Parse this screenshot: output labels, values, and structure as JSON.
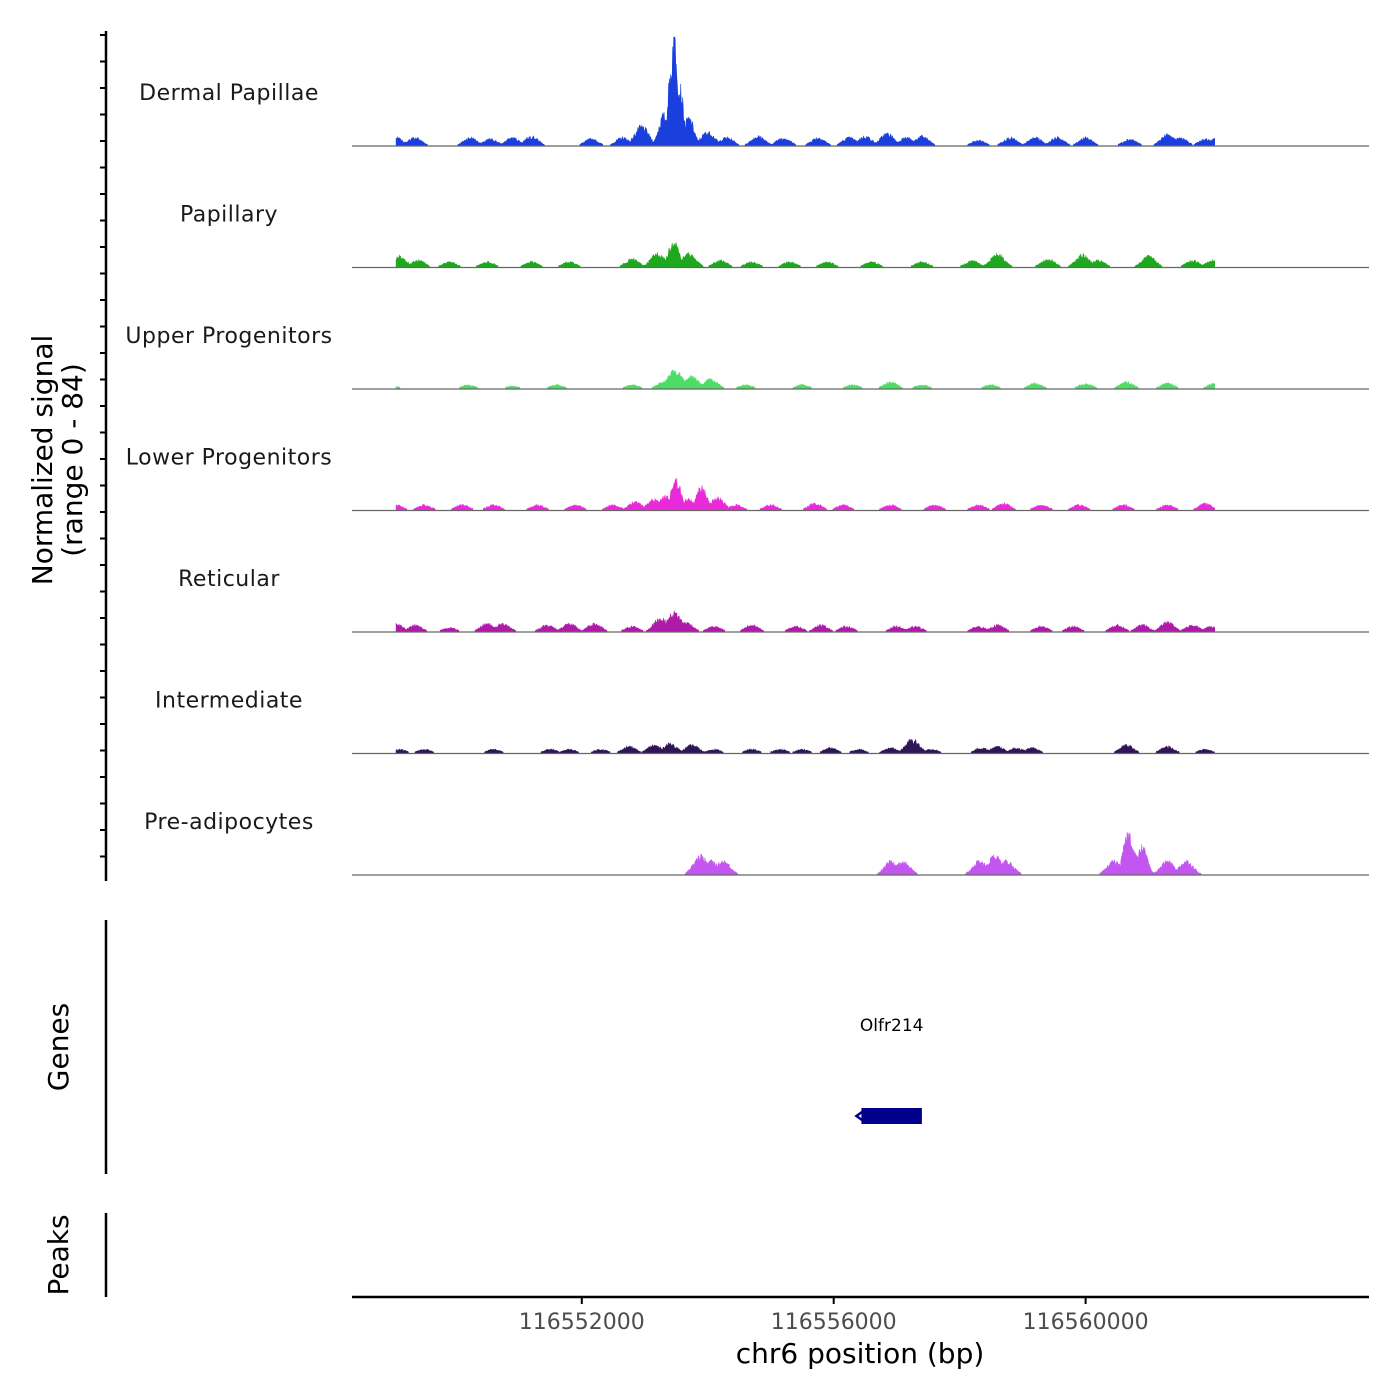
{
  "chart_data": {
    "type": "area",
    "title": "",
    "ylabel_line1": "Normalized signal",
    "ylabel_line2": "(range 0 - 84)",
    "y_range": [
      0,
      84
    ],
    "xlabel": "chr6 position (bp)",
    "x_range": [
      116548350,
      116564500
    ],
    "x_ticks": [
      {
        "value": 116552000,
        "label": "116552000"
      },
      {
        "value": 116556000,
        "label": "116556000"
      },
      {
        "value": 116560000,
        "label": "116560000"
      }
    ],
    "signal_extent": [
      116549050,
      116562050
    ],
    "tracks": [
      {
        "name": "Dermal Papillae",
        "color": "#1a3fdc",
        "peaks": [
          [
            116549050,
            6
          ],
          [
            116549350,
            6
          ],
          [
            116550230,
            6
          ],
          [
            116550550,
            5
          ],
          [
            116550900,
            6
          ],
          [
            116551200,
            7
          ],
          [
            116552150,
            5
          ],
          [
            116552650,
            6
          ],
          [
            116552950,
            14
          ],
          [
            116553300,
            22
          ],
          [
            116553420,
            55
          ],
          [
            116553470,
            84
          ],
          [
            116553560,
            42
          ],
          [
            116553700,
            20
          ],
          [
            116554000,
            10
          ],
          [
            116554300,
            6
          ],
          [
            116554800,
            7
          ],
          [
            116555200,
            6
          ],
          [
            116555750,
            6
          ],
          [
            116556250,
            6
          ],
          [
            116556500,
            7
          ],
          [
            116556850,
            9
          ],
          [
            116557150,
            6
          ],
          [
            116557400,
            7
          ],
          [
            116558300,
            4
          ],
          [
            116558800,
            6
          ],
          [
            116559200,
            6
          ],
          [
            116559550,
            6
          ],
          [
            116560000,
            6
          ],
          [
            116560700,
            5
          ],
          [
            116561300,
            8
          ],
          [
            116561500,
            6
          ],
          [
            116561900,
            5
          ],
          [
            116562100,
            6
          ]
        ]
      },
      {
        "name": "Papillary",
        "color": "#1ea81e",
        "peaks": [
          [
            116549100,
            8
          ],
          [
            116549400,
            5
          ],
          [
            116549900,
            4
          ],
          [
            116550500,
            4
          ],
          [
            116551200,
            4
          ],
          [
            116551800,
            4
          ],
          [
            116552800,
            6
          ],
          [
            116553200,
            10
          ],
          [
            116553460,
            20
          ],
          [
            116553700,
            10
          ],
          [
            116554200,
            5
          ],
          [
            116554700,
            4
          ],
          [
            116555300,
            4
          ],
          [
            116555900,
            4
          ],
          [
            116556600,
            4
          ],
          [
            116557400,
            4
          ],
          [
            116558200,
            5
          ],
          [
            116558600,
            10
          ],
          [
            116559400,
            6
          ],
          [
            116559950,
            9
          ],
          [
            116560200,
            5
          ],
          [
            116561000,
            8
          ],
          [
            116561700,
            5
          ],
          [
            116562000,
            5
          ]
        ]
      },
      {
        "name": "Upper Progenitors",
        "color": "#4fdc66",
        "peaks": [
          [
            116549000,
            2
          ],
          [
            116550200,
            3
          ],
          [
            116550900,
            2
          ],
          [
            116551600,
            3
          ],
          [
            116552800,
            3
          ],
          [
            116553300,
            5
          ],
          [
            116553480,
            14
          ],
          [
            116553750,
            9
          ],
          [
            116554050,
            7
          ],
          [
            116554600,
            3
          ],
          [
            116555500,
            3
          ],
          [
            116556300,
            3
          ],
          [
            116556900,
            5
          ],
          [
            116557400,
            3
          ],
          [
            116558500,
            3
          ],
          [
            116559200,
            4
          ],
          [
            116560000,
            4
          ],
          [
            116560650,
            5
          ],
          [
            116561300,
            4
          ],
          [
            116562050,
            4
          ]
        ]
      },
      {
        "name": "Lower Progenitors",
        "color": "#e82ad8",
        "peaks": [
          [
            116549050,
            4
          ],
          [
            116549500,
            4
          ],
          [
            116550100,
            4
          ],
          [
            116550600,
            4
          ],
          [
            116551300,
            4
          ],
          [
            116551900,
            4
          ],
          [
            116552500,
            4
          ],
          [
            116552850,
            6
          ],
          [
            116553150,
            8
          ],
          [
            116553330,
            10
          ],
          [
            116553500,
            22
          ],
          [
            116553700,
            8
          ],
          [
            116553900,
            18
          ],
          [
            116554150,
            9
          ],
          [
            116554450,
            4
          ],
          [
            116555000,
            4
          ],
          [
            116555700,
            5
          ],
          [
            116556150,
            4
          ],
          [
            116556900,
            4
          ],
          [
            116557600,
            4
          ],
          [
            116558300,
            4
          ],
          [
            116558700,
            5
          ],
          [
            116559300,
            4
          ],
          [
            116559900,
            4
          ],
          [
            116560600,
            4
          ],
          [
            116561300,
            4
          ],
          [
            116561900,
            5
          ]
        ]
      },
      {
        "name": "Reticular",
        "color": "#b01aa9",
        "peaks": [
          [
            116549050,
            6
          ],
          [
            116549350,
            5
          ],
          [
            116549900,
            3
          ],
          [
            116550500,
            6
          ],
          [
            116550750,
            6
          ],
          [
            116551450,
            5
          ],
          [
            116551800,
            6
          ],
          [
            116552200,
            6
          ],
          [
            116552800,
            4
          ],
          [
            116553250,
            10
          ],
          [
            116553470,
            14
          ],
          [
            116553650,
            7
          ],
          [
            116554100,
            4
          ],
          [
            116554700,
            5
          ],
          [
            116555400,
            4
          ],
          [
            116555800,
            5
          ],
          [
            116556200,
            4
          ],
          [
            116557000,
            4
          ],
          [
            116557300,
            4
          ],
          [
            116558300,
            4
          ],
          [
            116558600,
            5
          ],
          [
            116559300,
            4
          ],
          [
            116559800,
            4
          ],
          [
            116560500,
            5
          ],
          [
            116560900,
            5
          ],
          [
            116561300,
            7
          ],
          [
            116561700,
            5
          ],
          [
            116562000,
            4
          ]
        ]
      },
      {
        "name": "Intermediate",
        "color": "#2f1556",
        "peaks": [
          [
            116549100,
            3
          ],
          [
            116549500,
            3
          ],
          [
            116550600,
            3
          ],
          [
            116551500,
            3
          ],
          [
            116551800,
            3
          ],
          [
            116552300,
            3
          ],
          [
            116552750,
            5
          ],
          [
            116553150,
            6
          ],
          [
            116553400,
            7
          ],
          [
            116553750,
            6
          ],
          [
            116554100,
            3
          ],
          [
            116554700,
            3
          ],
          [
            116555150,
            3
          ],
          [
            116555500,
            3
          ],
          [
            116555950,
            4
          ],
          [
            116556400,
            3
          ],
          [
            116556900,
            4
          ],
          [
            116557250,
            10
          ],
          [
            116557550,
            3
          ],
          [
            116558350,
            4
          ],
          [
            116558600,
            5
          ],
          [
            116558900,
            4
          ],
          [
            116559150,
            4
          ],
          [
            116560650,
            6
          ],
          [
            116561300,
            5
          ],
          [
            116561900,
            3
          ]
        ]
      },
      {
        "name": "Pre-adipocytes",
        "color": "#c356f0",
        "peaks": [
          [
            116553880,
            14
          ],
          [
            116554050,
            10
          ],
          [
            116554250,
            10
          ],
          [
            116556920,
            10
          ],
          [
            116557100,
            10
          ],
          [
            116558320,
            10
          ],
          [
            116558560,
            14
          ],
          [
            116558750,
            10
          ],
          [
            116560450,
            10
          ],
          [
            116560680,
            30
          ],
          [
            116560750,
            18
          ],
          [
            116560900,
            20
          ],
          [
            116561300,
            10
          ],
          [
            116561600,
            10
          ]
        ]
      }
    ],
    "genes_label": "Genes",
    "peaks_label": "Peaks",
    "genes": [
      {
        "name": "Olfr214",
        "start": 116556440,
        "end": 116557400,
        "strand": "-",
        "color": "#00008b"
      }
    ]
  }
}
